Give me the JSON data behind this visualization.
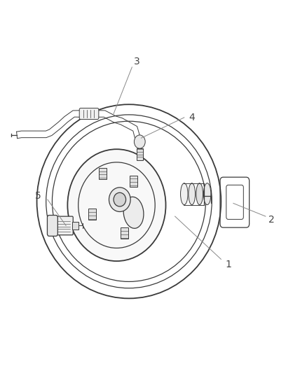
{
  "bg_color": "#ffffff",
  "lc": "#3a3a3a",
  "lc_light": "#888888",
  "figsize": [
    4.38,
    5.33
  ],
  "dpi": 100,
  "label_fontsize": 10,
  "label_color": "#444444",
  "leaders": {
    "1": {
      "line": [
        [
          0.57,
          0.42
        ],
        [
          0.72,
          0.305
        ]
      ],
      "text": [
        0.745,
        0.29
      ]
    },
    "2": {
      "line": [
        [
          0.76,
          0.455
        ],
        [
          0.865,
          0.42
        ]
      ],
      "text": [
        0.885,
        0.41
      ]
    },
    "3": {
      "line": [
        [
          0.37,
          0.695
        ],
        [
          0.43,
          0.82
        ]
      ],
      "text": [
        0.445,
        0.835
      ]
    },
    "4": {
      "line": [
        [
          0.46,
          0.63
        ],
        [
          0.6,
          0.685
        ]
      ],
      "text": [
        0.625,
        0.685
      ]
    },
    "5": {
      "line": [
        [
          0.215,
          0.395
        ],
        [
          0.155,
          0.465
        ]
      ],
      "text": [
        0.125,
        0.475
      ]
    }
  }
}
